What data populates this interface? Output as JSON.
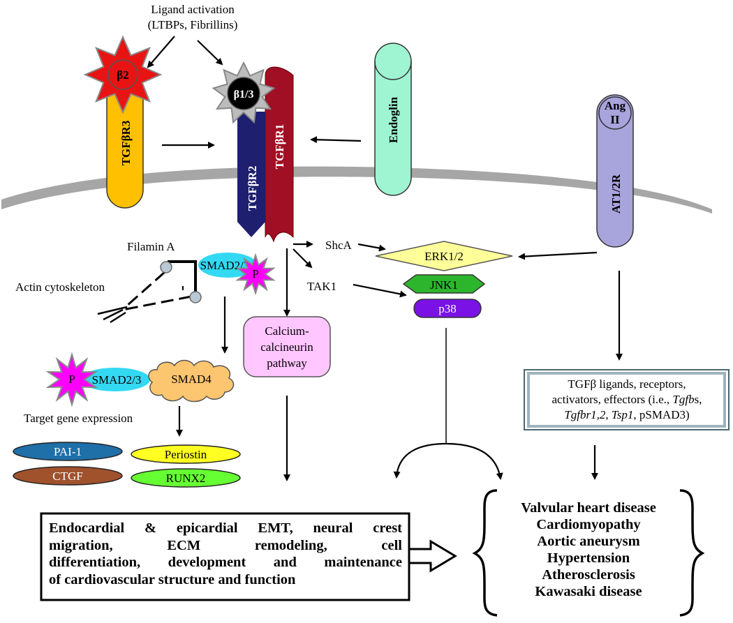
{
  "ligand_activation": {
    "line1": "Ligand activation",
    "line2": "(LTBPs, Fibrillins)"
  },
  "ligands": {
    "beta2": "β2",
    "beta13": "β1/3",
    "ang_line1": "Ang",
    "ang_line2": "II"
  },
  "receptors": {
    "tgfbr3": "TGFβR3",
    "tgfbr2": "TGFβR2",
    "tgfbr1": "TGFβR1",
    "endoglin": "Endoglin",
    "at12r": "AT1/2R"
  },
  "cytoplasm": {
    "filamin": "Filamin A",
    "actin": "Actin cytoskeleton",
    "smad23": "SMAD2/3",
    "smad23_b": "SMAD2/3",
    "smad4": "SMAD4",
    "p_label": "P",
    "p_label_b": "P",
    "shca": "ShcA",
    "tak1": "TAK1",
    "erk": "ERK1/2",
    "jnk": "JNK1",
    "p38": "p38",
    "calcium_line1": "Calcium-",
    "calcium_line2": "calcineurin",
    "calcium_line3": "pathway",
    "target_gene": "Target gene expression"
  },
  "genes": {
    "pai1": "PAI-1",
    "periostin": "Periostin",
    "ctgf": "CTGF",
    "runx2": "RUNX2"
  },
  "tgf_box": {
    "line1": "TGFβ ligands, receptors,",
    "line2_pre": "activators, effectors (i.e., ",
    "line2_ital": "Tgfb",
    "line2_post": "s,",
    "line3_ital1": "Tgfbr1,2",
    "line3_mid": ", ",
    "line3_ital2": "Tsp1",
    "line3_post": ", pSMAD3)"
  },
  "process_box": {
    "line1": "Endocardial & epicardial EMT, neural crest",
    "line2": "migration, ECM remodeling, cell",
    "line3": "differentiation, development and maintenance",
    "line4": "of cardiovascular structure and function"
  },
  "diseases": [
    "Valvular heart disease",
    "Cardiomyopathy",
    "Aortic aneurysm",
    "Hypertension",
    "Atherosclerosis",
    "Kawasaki disease"
  ],
  "colors": {
    "membrane": "#a6a6a6",
    "tgfbr3": "#ffc000",
    "tgfbr2": "#1f1f70",
    "tgfbr1": "#a10f24",
    "endoglin": "#9ff5d2",
    "at12r": "#a8a4dc",
    "beta2": "#e81414",
    "beta13": "#000000",
    "smad23": "#33d9f2",
    "smad4": "#fcc56f",
    "phospho": "#ff00ff",
    "erk": "#ffff99",
    "jnk": "#2db52d",
    "p38": "#7a12e6",
    "calcium": "#ffc6ff",
    "pai1": "#1f6fa8",
    "periostin": "#ffff22",
    "ctgf": "#a0522d",
    "runx2": "#66ff33"
  }
}
